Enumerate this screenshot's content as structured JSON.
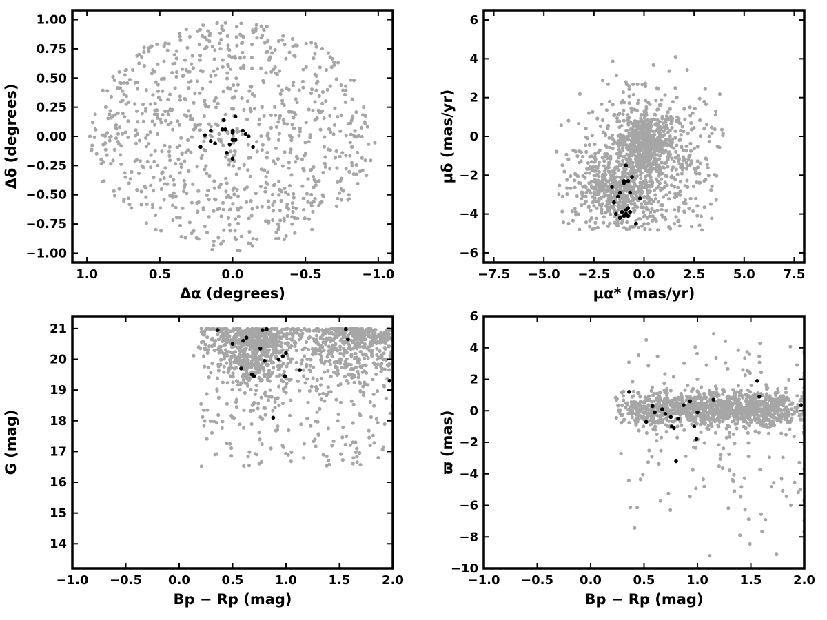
{
  "colors": {
    "field": "#a6a6a6",
    "member": "#000000",
    "axes": "#000000"
  },
  "chart_data": [
    {
      "type": "scatter",
      "id": "sky",
      "xlabel": "Δα (degrees)",
      "ylabel": "Δδ (degrees)",
      "xlim": [
        1.1,
        -1.1
      ],
      "ylim": [
        -1.08,
        1.08
      ],
      "xticks": [
        1.0,
        0.5,
        0.0,
        -0.5,
        -1.0
      ],
      "xtick_labels": [
        "1.0",
        "0.5",
        "0.0",
        "−0.5",
        "−1.0"
      ],
      "yticks": [
        1.0,
        0.75,
        0.5,
        0.25,
        0.0,
        -0.25,
        -0.5,
        -0.75,
        -1.0
      ],
      "ytick_labels": [
        "1.00",
        "0.75",
        "0.50",
        "0.25",
        "0.00",
        "−0.25",
        "−0.50",
        "−0.75",
        "−1.00"
      ],
      "grid": false,
      "field_generator": {
        "n": 900,
        "shape": "disk",
        "center": [
          0,
          0
        ],
        "radius": 0.98
      },
      "series": [
        {
          "role": "members",
          "x": [
            -0.02,
            0.06,
            0.15,
            0.19,
            0.05,
            0.07,
            -0.07,
            -0.09,
            0.0,
            0.0,
            0.0,
            -0.02,
            0.12,
            0.15,
            0.22,
            0.02,
            0.04,
            0.0,
            -0.14,
            -0.11
          ],
          "y": [
            0.17,
            0.14,
            0.05,
            0.01,
            0.06,
            0.06,
            0.05,
            0.02,
            0.05,
            0.03,
            -0.03,
            -0.03,
            -0.06,
            -0.04,
            -0.09,
            -0.07,
            -0.14,
            -0.19,
            -0.09,
            0.0
          ]
        }
      ]
    },
    {
      "type": "scatter",
      "id": "proper-motion",
      "xlabel": "μα* (mas/yr)",
      "ylabel": "μδ (mas/yr)",
      "xlim": [
        -8.0,
        8.0
      ],
      "ylim": [
        -6.5,
        6.5
      ],
      "xticks": [
        -7.5,
        -5.0,
        -2.5,
        0.0,
        2.5,
        5.0,
        7.5
      ],
      "xtick_labels": [
        "−7.5",
        "−5.0",
        "−2.5",
        "0.0",
        "2.5",
        "5.0",
        "7.5"
      ],
      "yticks": [
        6,
        4,
        2,
        0,
        -2,
        -4,
        -6
      ],
      "ytick_labels": [
        "6",
        "4",
        "2",
        "0",
        "−2",
        "−4",
        "−6"
      ],
      "grid": false,
      "field_generator": {
        "n": 1500,
        "shape": "clumps",
        "clumps": [
          [
            0.0,
            -0.3,
            0.7,
            0.8,
            0.35
          ],
          [
            -1.3,
            -2.8,
            1.1,
            1.0,
            0.3
          ],
          [
            0.5,
            -1.5,
            2.0,
            2.2,
            0.35
          ]
        ],
        "xrange": [
          -4.7,
          4.0
        ],
        "yrange": [
          -4.9,
          4.5
        ]
      },
      "series": [
        {
          "role": "members",
          "x": [
            -0.9,
            -1.0,
            -0.8,
            -0.6,
            -0.2,
            -0.7,
            -1.0,
            -1.2,
            -1.3,
            -1.5,
            -1.4,
            -0.8,
            -0.9,
            -1.1,
            -1.0,
            -0.7,
            -0.9,
            -1.2,
            -0.8,
            -0.4,
            -1.6
          ],
          "y": [
            -1.5,
            -2.3,
            -2.3,
            -2.1,
            -3.2,
            -2.9,
            -2.4,
            -2.9,
            -3.1,
            -3.4,
            -4.0,
            -3.7,
            -3.8,
            -3.9,
            -4.1,
            -3.9,
            -4.0,
            -4.2,
            -4.1,
            -4.5,
            -2.6
          ]
        }
      ]
    },
    {
      "type": "scatter",
      "id": "cmd",
      "xlabel": "Bp − Rp (mag)",
      "ylabel": "G (mag)",
      "xlim": [
        -1.0,
        2.0
      ],
      "ylim": [
        13.2,
        21.4
      ],
      "y_inverted": false,
      "xticks": [
        -1.0,
        -0.5,
        0.0,
        0.5,
        1.0,
        1.5,
        2.0
      ],
      "xtick_labels": [
        "−1.0",
        "−0.5",
        "0.0",
        "0.5",
        "1.0",
        "1.5",
        "2.0"
      ],
      "yticks": [
        21,
        20,
        19,
        18,
        17,
        16,
        15,
        14
      ],
      "ytick_labels": [
        "21",
        "20",
        "19",
        "18",
        "17",
        "16",
        "15",
        "14"
      ],
      "grid": false,
      "field_generator": {
        "n": 1400,
        "shape": "cmd"
      },
      "series": [
        {
          "role": "members",
          "x": [
            0.36,
            0.78,
            0.82,
            0.5,
            0.6,
            0.63,
            0.76,
            0.93,
            0.97,
            1.0,
            0.8,
            1.13,
            0.58,
            0.68,
            0.7,
            0.99,
            1.56,
            1.58,
            0.88,
            1.97
          ],
          "y": [
            20.95,
            20.95,
            20.98,
            20.5,
            20.6,
            20.7,
            20.35,
            20.0,
            20.1,
            20.2,
            19.95,
            19.65,
            19.7,
            19.5,
            19.45,
            19.45,
            20.98,
            20.65,
            18.1,
            19.3
          ]
        }
      ]
    },
    {
      "type": "scatter",
      "id": "parallax",
      "xlabel": "Bp − Rp (mag)",
      "ylabel": "ϖ (mas)",
      "xlim": [
        -1.0,
        2.0
      ],
      "ylim": [
        -10.0,
        6.0
      ],
      "xticks": [
        -1.0,
        -0.5,
        0.0,
        0.5,
        1.0,
        1.5,
        2.0
      ],
      "xtick_labels": [
        "−1.0",
        "−0.5",
        "0.0",
        "0.5",
        "1.0",
        "1.5",
        "2.0"
      ],
      "yticks": [
        6,
        4,
        2,
        0,
        -2,
        -4,
        -6,
        -8,
        -10
      ],
      "ytick_labels": [
        "6",
        "4",
        "2",
        "0",
        "−2",
        "−4",
        "−6",
        "−8",
        "−10"
      ],
      "grid": false,
      "field_generator": {
        "n": 1400,
        "shape": "band"
      },
      "series": [
        {
          "role": "members",
          "x": [
            0.36,
            0.58,
            0.6,
            0.67,
            0.7,
            0.52,
            0.76,
            0.78,
            0.8,
            0.87,
            0.93,
            0.97,
            0.99,
            1.15,
            1.56,
            1.58,
            0.75,
            0.82,
            1.0,
            1.97
          ],
          "y": [
            1.2,
            0.3,
            -0.1,
            0.1,
            -0.2,
            -0.7,
            -1.0,
            -1.1,
            -3.2,
            0.35,
            0.6,
            -1.0,
            -1.8,
            0.7,
            1.9,
            0.9,
            -0.4,
            -0.5,
            -0.1,
            0.35
          ]
        }
      ]
    }
  ]
}
